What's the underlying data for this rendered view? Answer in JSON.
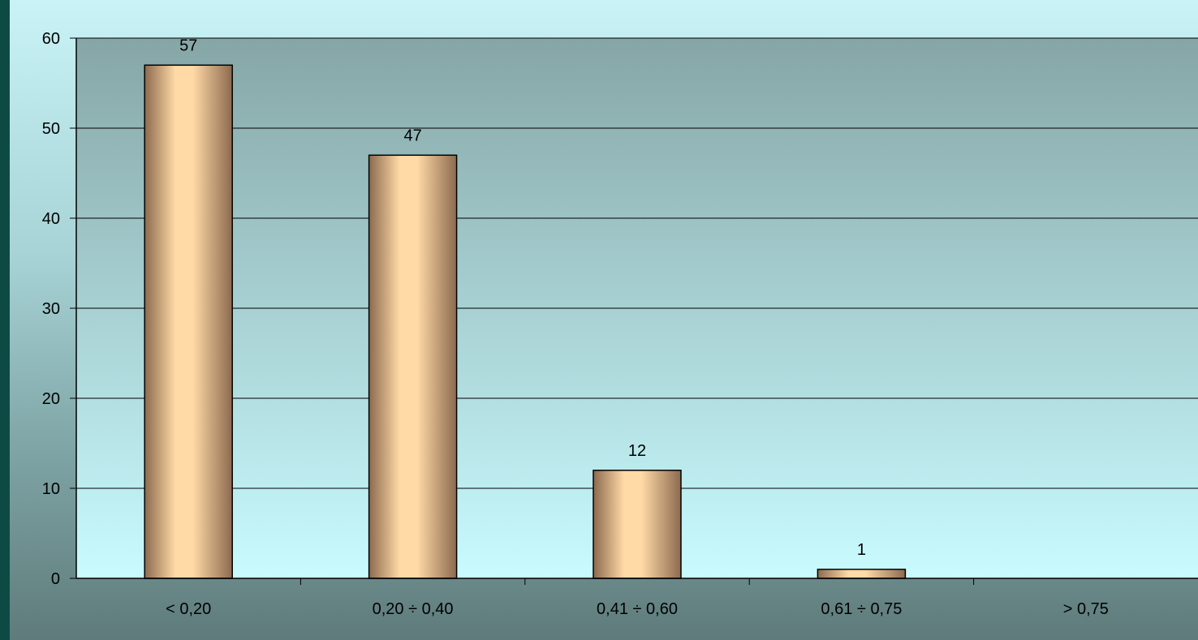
{
  "chart_data": {
    "type": "bar",
    "categories": [
      "< 0,20",
      "0,20 ÷ 0,40",
      "0,41 ÷ 0,60",
      "0,61 ÷ 0,75",
      "> 0,75"
    ],
    "values": [
      57,
      47,
      12,
      1,
      null
    ],
    "data_labels": [
      "57",
      "47",
      "12",
      "1",
      ""
    ],
    "yticks": [
      "0",
      "10",
      "20",
      "30",
      "40",
      "50",
      "60"
    ],
    "ylim": [
      0,
      60
    ],
    "grid": true,
    "colors": {
      "bar_light": "#ffd9a6",
      "bar_dark": "#8c6a4f",
      "plot_top": "#86a6a6",
      "plot_bottom": "#c9fbff",
      "gridline": "#000000"
    }
  }
}
